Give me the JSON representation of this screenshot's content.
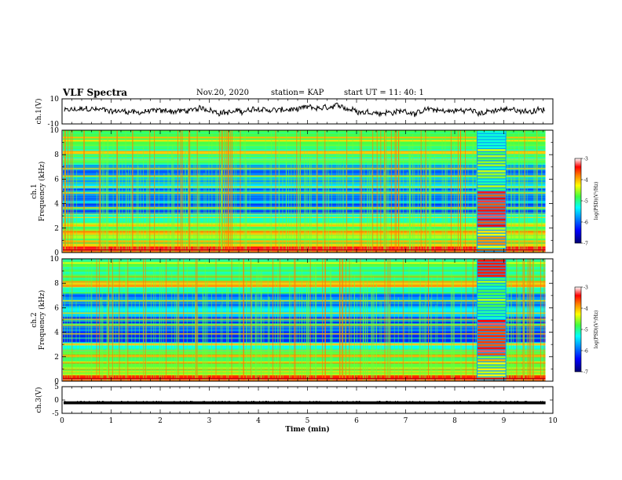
{
  "header": {
    "title": "VLF Spectra",
    "date": "Nov.20, 2020",
    "station": "station= KAP",
    "start": "start  UT =   11: 40: 1"
  },
  "colors": {
    "frame": "#000000",
    "colormap": [
      "#000080",
      "#0000ff",
      "#0080ff",
      "#00ffff",
      "#80ff80",
      "#ffff00",
      "#ff8000",
      "#ff0000",
      "#ffffff"
    ]
  },
  "chart_data": [
    {
      "type": "line",
      "panel": "ch1-waveform",
      "ylabel": "ch.1(V)",
      "ylim": [
        -10,
        10
      ],
      "ticks": [
        "10",
        "-10"
      ],
      "x_range_min": [
        0,
        10
      ],
      "series": [
        {
          "values_summary": "noisy waveform around 0 V with amplitude about ±5 V",
          "x_end": 9.85
        }
      ]
    },
    {
      "type": "heatmap",
      "panel": "ch1-spectrogram",
      "ylabel": "ch.1\nFrequency (kHz)",
      "ylim": [
        0,
        10
      ],
      "yticks": [
        "0",
        "2",
        "4",
        "6",
        "8",
        "10"
      ],
      "x_range_min": [
        0,
        9.85
      ],
      "colorbar": {
        "label": "log(PSD)(V²/Hz)",
        "range": [
          -7,
          -3
        ],
        "ticks": [
          "-3",
          "-4",
          "-5",
          "-6",
          "-7"
        ]
      },
      "burst_interval_min": [
        8.45,
        9.05
      ]
    },
    {
      "type": "heatmap",
      "panel": "ch2-spectrogram",
      "ylabel": "ch.2\nFrequency (kHz)",
      "ylim": [
        0,
        10
      ],
      "yticks": [
        "0",
        "2",
        "4",
        "6",
        "8",
        "10"
      ],
      "x_range_min": [
        0,
        9.85
      ],
      "colorbar": {
        "label": "log(PSD)(V²/Hz)",
        "range": [
          -7,
          -3
        ],
        "ticks": [
          "-3",
          "-4",
          "-5",
          "-6",
          "-7"
        ]
      },
      "burst_interval_min": [
        8.45,
        9.05
      ]
    },
    {
      "type": "line",
      "panel": "ch3-waveform",
      "ylabel": "ch.3(V)",
      "ylim": [
        -5,
        5
      ],
      "ticks": [
        "5",
        "0",
        "-5"
      ],
      "series": [
        {
          "values_summary": "dense band near -1 V",
          "x_end": 9.85
        }
      ]
    }
  ],
  "x_axis": {
    "label": "Time (min)",
    "ticks": [
      "0",
      "1",
      "2",
      "3",
      "4",
      "5",
      "6",
      "7",
      "8",
      "9",
      "10"
    ],
    "range": [
      0,
      10
    ]
  }
}
